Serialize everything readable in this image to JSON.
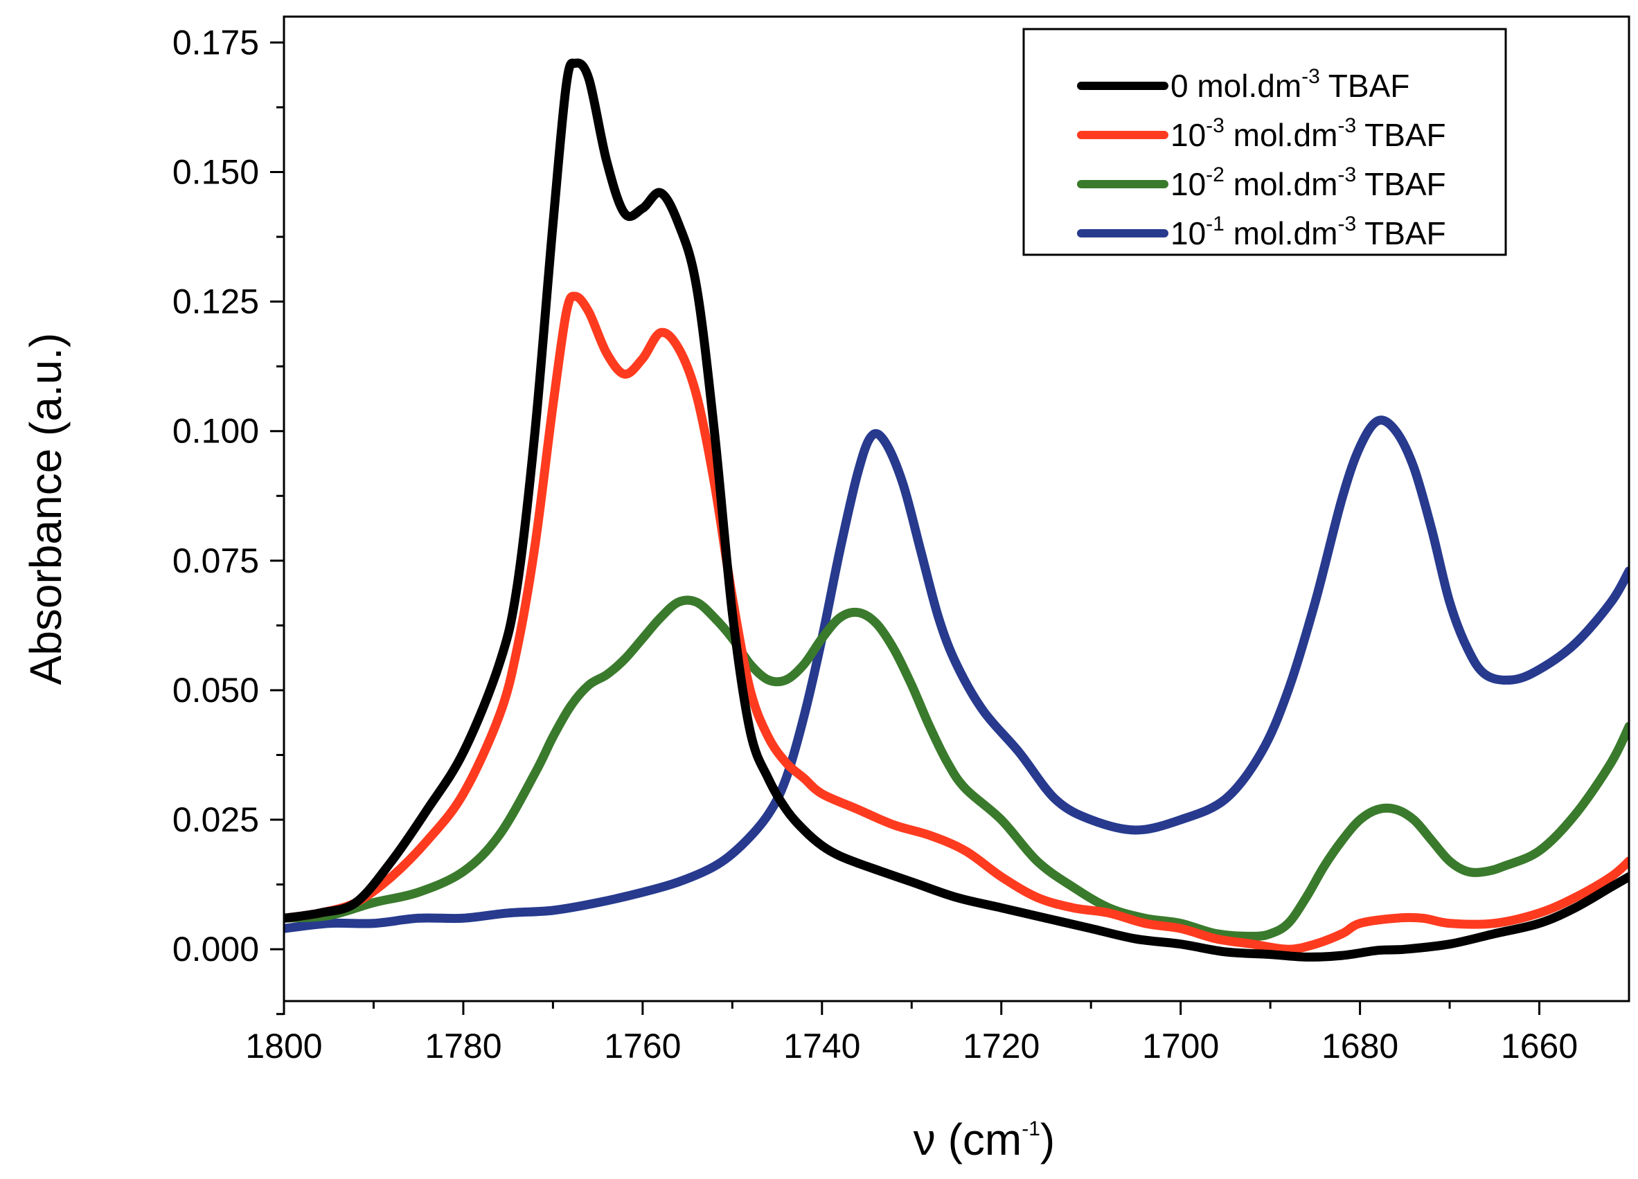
{
  "chart_data": {
    "type": "line",
    "title": "",
    "xlabel": {
      "symbol": "ν",
      "unit": "cm",
      "sup": "-1"
    },
    "ylabel": "Absorbance (a.u.)",
    "xlim": [
      1800,
      1650
    ],
    "ylim": [
      -0.01,
      0.18
    ],
    "x_ticks": [
      1800,
      1780,
      1760,
      1740,
      1720,
      1700,
      1680,
      1660
    ],
    "x_tick_labels": [
      "1800",
      "1780",
      "1760",
      "1740",
      "1720",
      "1700",
      "1680",
      "1660"
    ],
    "y_ticks": [
      0.0,
      0.025,
      0.05,
      0.075,
      0.1,
      0.125,
      0.15,
      0.175
    ],
    "y_tick_labels": [
      "0.000",
      "0.025",
      "0.050",
      "0.075",
      "0.100",
      "0.125",
      "0.150",
      "0.175"
    ],
    "grid": false,
    "legend_position": "top-right",
    "series": [
      {
        "name": "0 mol.dm-3 TBAF",
        "label_parts": {
          "pre": "0 mol.dm",
          "sup1": "-3",
          "post": " TBAF"
        },
        "color": "#000000",
        "points": [
          [
            1800,
            0.006
          ],
          [
            1796,
            0.007
          ],
          [
            1792,
            0.009
          ],
          [
            1788,
            0.017
          ],
          [
            1784,
            0.027
          ],
          [
            1780,
            0.038
          ],
          [
            1776,
            0.055
          ],
          [
            1774,
            0.07
          ],
          [
            1772,
            0.1
          ],
          [
            1770,
            0.14
          ],
          [
            1768.5,
            0.167
          ],
          [
            1767.5,
            0.171
          ],
          [
            1766,
            0.168
          ],
          [
            1764,
            0.152
          ],
          [
            1762,
            0.142
          ],
          [
            1760,
            0.143
          ],
          [
            1758,
            0.146
          ],
          [
            1756,
            0.14
          ],
          [
            1754,
            0.128
          ],
          [
            1752,
            0.1
          ],
          [
            1750,
            0.065
          ],
          [
            1748,
            0.042
          ],
          [
            1746,
            0.033
          ],
          [
            1744,
            0.027
          ],
          [
            1742,
            0.023
          ],
          [
            1740,
            0.02
          ],
          [
            1738,
            0.018
          ],
          [
            1735,
            0.016
          ],
          [
            1730,
            0.013
          ],
          [
            1725,
            0.01
          ],
          [
            1720,
            0.008
          ],
          [
            1715,
            0.006
          ],
          [
            1710,
            0.004
          ],
          [
            1705,
            0.002
          ],
          [
            1700,
            0.001
          ],
          [
            1695,
            -0.0005
          ],
          [
            1690,
            -0.001
          ],
          [
            1686,
            -0.0015
          ],
          [
            1682,
            -0.0012
          ],
          [
            1678,
            -0.0002
          ],
          [
            1675,
            0.0
          ],
          [
            1670,
            0.001
          ],
          [
            1665,
            0.003
          ],
          [
            1660,
            0.005
          ],
          [
            1656,
            0.008
          ],
          [
            1652,
            0.012
          ],
          [
            1650,
            0.014
          ]
        ]
      },
      {
        "name": "10-3 mol.dm-3 TBAF",
        "label_parts": {
          "pre": "10",
          "sup0": "-3",
          "mid": " mol.dm",
          "sup1": "-3",
          "post": " TBAF"
        },
        "color": "#ff3b1f",
        "points": [
          [
            1800,
            0.006
          ],
          [
            1796,
            0.007
          ],
          [
            1792,
            0.009
          ],
          [
            1788,
            0.014
          ],
          [
            1784,
            0.021
          ],
          [
            1780,
            0.03
          ],
          [
            1776,
            0.045
          ],
          [
            1774,
            0.058
          ],
          [
            1772,
            0.078
          ],
          [
            1770,
            0.105
          ],
          [
            1768.5,
            0.123
          ],
          [
            1767.5,
            0.126
          ],
          [
            1766,
            0.123
          ],
          [
            1764,
            0.115
          ],
          [
            1762,
            0.111
          ],
          [
            1760,
            0.114
          ],
          [
            1758,
            0.119
          ],
          [
            1756,
            0.116
          ],
          [
            1754,
            0.107
          ],
          [
            1752,
            0.09
          ],
          [
            1750,
            0.068
          ],
          [
            1748,
            0.05
          ],
          [
            1746,
            0.041
          ],
          [
            1744,
            0.036
          ],
          [
            1742,
            0.033
          ],
          [
            1740,
            0.03
          ],
          [
            1736,
            0.027
          ],
          [
            1732,
            0.024
          ],
          [
            1728,
            0.022
          ],
          [
            1724,
            0.019
          ],
          [
            1720,
            0.014
          ],
          [
            1716,
            0.01
          ],
          [
            1712,
            0.008
          ],
          [
            1708,
            0.007
          ],
          [
            1704,
            0.005
          ],
          [
            1700,
            0.004
          ],
          [
            1696,
            0.002
          ],
          [
            1692,
            0.001
          ],
          [
            1688,
            0.0
          ],
          [
            1685,
            0.001
          ],
          [
            1682,
            0.003
          ],
          [
            1680,
            0.005
          ],
          [
            1676,
            0.006
          ],
          [
            1673,
            0.006
          ],
          [
            1670,
            0.005
          ],
          [
            1665,
            0.005
          ],
          [
            1660,
            0.007
          ],
          [
            1656,
            0.01
          ],
          [
            1652,
            0.014
          ],
          [
            1650,
            0.017
          ]
        ]
      },
      {
        "name": "10-2 mol.dm-3 TBAF",
        "label_parts": {
          "pre": "10",
          "sup0": "-2",
          "mid": " mol.dm",
          "sup1": "-3",
          "post": " TBAF"
        },
        "color": "#3a7a2c",
        "points": [
          [
            1800,
            0.006
          ],
          [
            1795,
            0.0065
          ],
          [
            1790,
            0.009
          ],
          [
            1785,
            0.011
          ],
          [
            1780,
            0.015
          ],
          [
            1776,
            0.022
          ],
          [
            1772,
            0.034
          ],
          [
            1770,
            0.041
          ],
          [
            1768,
            0.047
          ],
          [
            1766,
            0.051
          ],
          [
            1764,
            0.053
          ],
          [
            1762,
            0.056
          ],
          [
            1760,
            0.06
          ],
          [
            1758,
            0.064
          ],
          [
            1756,
            0.067
          ],
          [
            1754,
            0.067
          ],
          [
            1752,
            0.064
          ],
          [
            1750,
            0.06
          ],
          [
            1748,
            0.055
          ],
          [
            1746,
            0.052
          ],
          [
            1744,
            0.052
          ],
          [
            1742,
            0.055
          ],
          [
            1740,
            0.06
          ],
          [
            1738,
            0.064
          ],
          [
            1736,
            0.065
          ],
          [
            1734,
            0.063
          ],
          [
            1732,
            0.058
          ],
          [
            1730,
            0.051
          ],
          [
            1728,
            0.043
          ],
          [
            1726,
            0.036
          ],
          [
            1724,
            0.031
          ],
          [
            1720,
            0.025
          ],
          [
            1716,
            0.017
          ],
          [
            1712,
            0.012
          ],
          [
            1708,
            0.008
          ],
          [
            1704,
            0.006
          ],
          [
            1700,
            0.005
          ],
          [
            1696,
            0.003
          ],
          [
            1692,
            0.0025
          ],
          [
            1690,
            0.003
          ],
          [
            1688,
            0.005
          ],
          [
            1686,
            0.01
          ],
          [
            1684,
            0.016
          ],
          [
            1682,
            0.021
          ],
          [
            1680,
            0.025
          ],
          [
            1678,
            0.027
          ],
          [
            1676,
            0.027
          ],
          [
            1674,
            0.025
          ],
          [
            1672,
            0.021
          ],
          [
            1670,
            0.017
          ],
          [
            1668,
            0.015
          ],
          [
            1666,
            0.015
          ],
          [
            1664,
            0.016
          ],
          [
            1660,
            0.019
          ],
          [
            1656,
            0.026
          ],
          [
            1652,
            0.036
          ],
          [
            1650,
            0.043
          ]
        ]
      },
      {
        "name": "10-1 mol.dm-3 TBAF",
        "label_parts": {
          "pre": "10",
          "sup0": "-1",
          "mid": " mol.dm",
          "sup1": "-3",
          "post": " TBAF"
        },
        "color": "#273a8e",
        "points": [
          [
            1800,
            0.004
          ],
          [
            1795,
            0.005
          ],
          [
            1790,
            0.005
          ],
          [
            1785,
            0.006
          ],
          [
            1780,
            0.006
          ],
          [
            1775,
            0.007
          ],
          [
            1770,
            0.0075
          ],
          [
            1765,
            0.009
          ],
          [
            1760,
            0.011
          ],
          [
            1756,
            0.013
          ],
          [
            1752,
            0.016
          ],
          [
            1749,
            0.02
          ],
          [
            1746,
            0.026
          ],
          [
            1744,
            0.033
          ],
          [
            1742,
            0.045
          ],
          [
            1740,
            0.06
          ],
          [
            1738,
            0.077
          ],
          [
            1736,
            0.092
          ],
          [
            1734.5,
            0.099
          ],
          [
            1733,
            0.098
          ],
          [
            1731,
            0.09
          ],
          [
            1729,
            0.077
          ],
          [
            1727,
            0.064
          ],
          [
            1725,
            0.055
          ],
          [
            1722,
            0.046
          ],
          [
            1718,
            0.038
          ],
          [
            1714,
            0.029
          ],
          [
            1710,
            0.025
          ],
          [
            1705,
            0.023
          ],
          [
            1700,
            0.025
          ],
          [
            1695,
            0.029
          ],
          [
            1691,
            0.038
          ],
          [
            1688,
            0.05
          ],
          [
            1685,
            0.067
          ],
          [
            1682,
            0.087
          ],
          [
            1680,
            0.097
          ],
          [
            1678,
            0.102
          ],
          [
            1676,
            0.1
          ],
          [
            1674,
            0.093
          ],
          [
            1672,
            0.081
          ],
          [
            1670,
            0.067
          ],
          [
            1668,
            0.058
          ],
          [
            1666,
            0.053
          ],
          [
            1663,
            0.052
          ],
          [
            1660,
            0.054
          ],
          [
            1656,
            0.059
          ],
          [
            1652,
            0.067
          ],
          [
            1650,
            0.073
          ]
        ]
      }
    ]
  }
}
